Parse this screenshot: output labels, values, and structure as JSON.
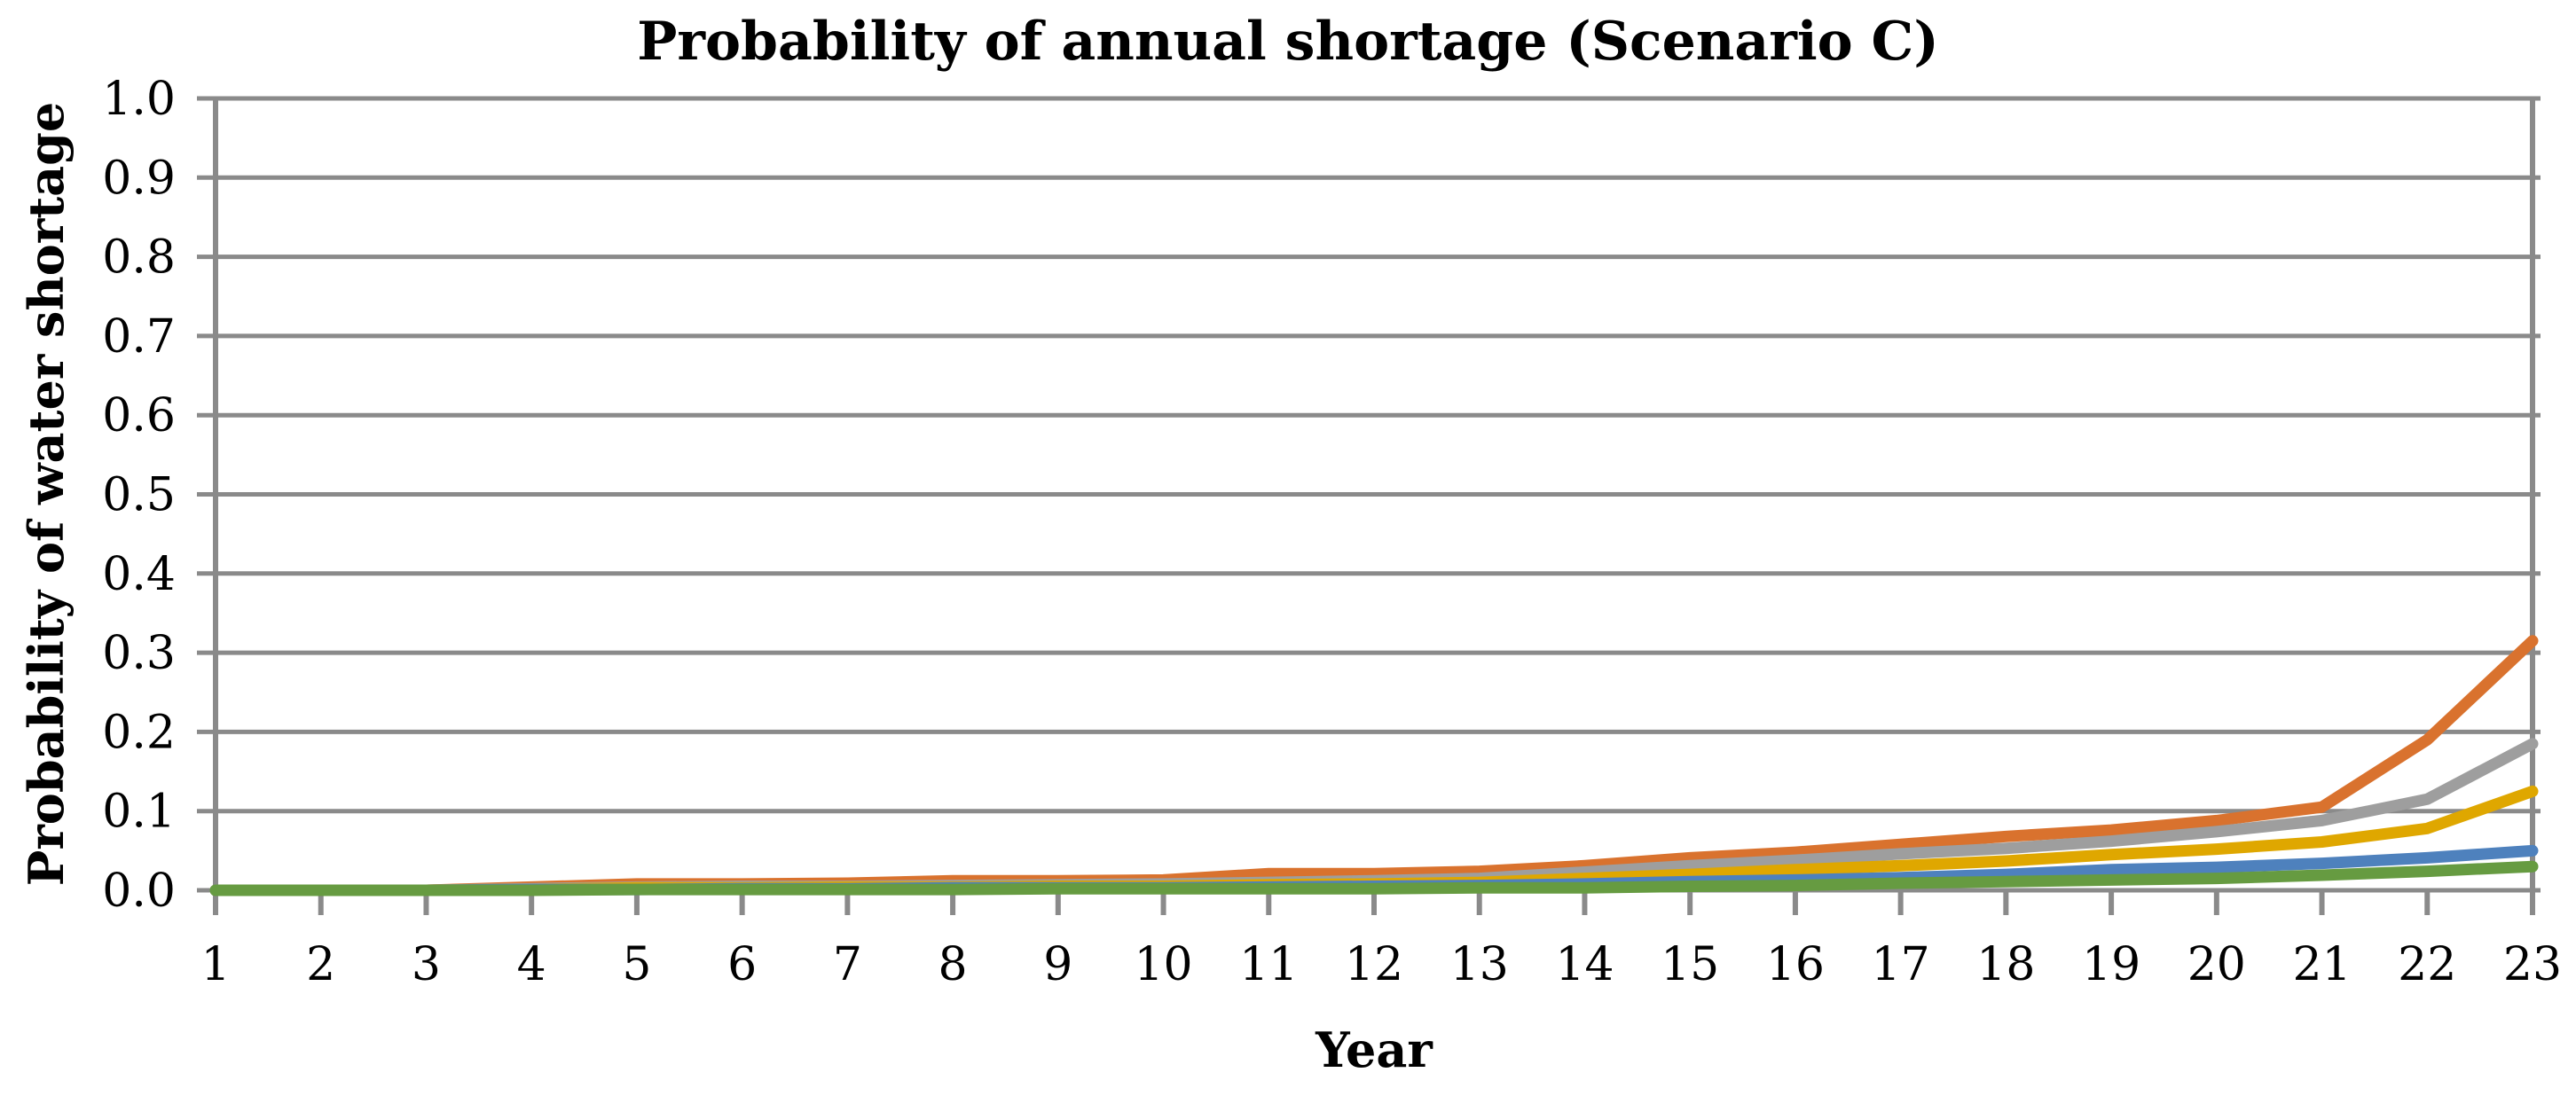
{
  "chart_data": {
    "type": "line",
    "title": "Probability of annual shortage (Scenario C)",
    "xlabel": "Year",
    "ylabel": "Probability of water shortage",
    "x": [
      1,
      2,
      3,
      4,
      5,
      6,
      7,
      8,
      9,
      10,
      11,
      12,
      13,
      14,
      15,
      16,
      17,
      18,
      19,
      20,
      21,
      22,
      23
    ],
    "xlim": [
      1,
      23
    ],
    "ylim": [
      0.0,
      1.0
    ],
    "ytick_step": 0.1,
    "ytick_labels": [
      "0.0",
      "0.1",
      "0.2",
      "0.3",
      "0.4",
      "0.5",
      "0.6",
      "0.7",
      "0.8",
      "0.9",
      "1.0"
    ],
    "grid": "horizontal",
    "legend": "none",
    "series": [
      {
        "name": "orange",
        "color": "#D9722E",
        "values": [
          0,
          0,
          0,
          0.004,
          0.008,
          0.008,
          0.009,
          0.012,
          0.012,
          0.013,
          0.021,
          0.021,
          0.024,
          0.031,
          0.041,
          0.048,
          0.058,
          0.068,
          0.076,
          0.088,
          0.105,
          0.19,
          0.315
        ]
      },
      {
        "name": "gray",
        "color": "#9E9E9E",
        "values": [
          0,
          0,
          0,
          0.002,
          0.004,
          0.005,
          0.005,
          0.006,
          0.007,
          0.008,
          0.01,
          0.012,
          0.015,
          0.023,
          0.031,
          0.038,
          0.046,
          0.053,
          0.062,
          0.074,
          0.088,
          0.115,
          0.185
        ]
      },
      {
        "name": "gold",
        "color": "#DFA700",
        "values": [
          0,
          0,
          0,
          0.001,
          0.003,
          0.003,
          0.004,
          0.004,
          0.005,
          0.005,
          0.007,
          0.008,
          0.01,
          0.015,
          0.02,
          0.026,
          0.031,
          0.037,
          0.045,
          0.052,
          0.061,
          0.078,
          0.125
        ]
      },
      {
        "name": "blue",
        "color": "#4E81BD",
        "values": [
          0,
          0,
          0,
          0.001,
          0.001,
          0.002,
          0.002,
          0.003,
          0.003,
          0.003,
          0.004,
          0.005,
          0.006,
          0.008,
          0.011,
          0.013,
          0.016,
          0.02,
          0.026,
          0.029,
          0.034,
          0.041,
          0.05
        ]
      },
      {
        "name": "green",
        "color": "#669B41",
        "values": [
          0,
          0,
          0,
          0,
          0.001,
          0.001,
          0.001,
          0.001,
          0.002,
          0.002,
          0.002,
          0.002,
          0.003,
          0.003,
          0.005,
          0.006,
          0.009,
          0.011,
          0.013,
          0.015,
          0.019,
          0.024,
          0.03
        ]
      }
    ],
    "style": {
      "grid_color": "#8A8A8A",
      "axis_color": "#8A8A8A",
      "background": "#FFFFFF",
      "line_width": 13
    }
  }
}
